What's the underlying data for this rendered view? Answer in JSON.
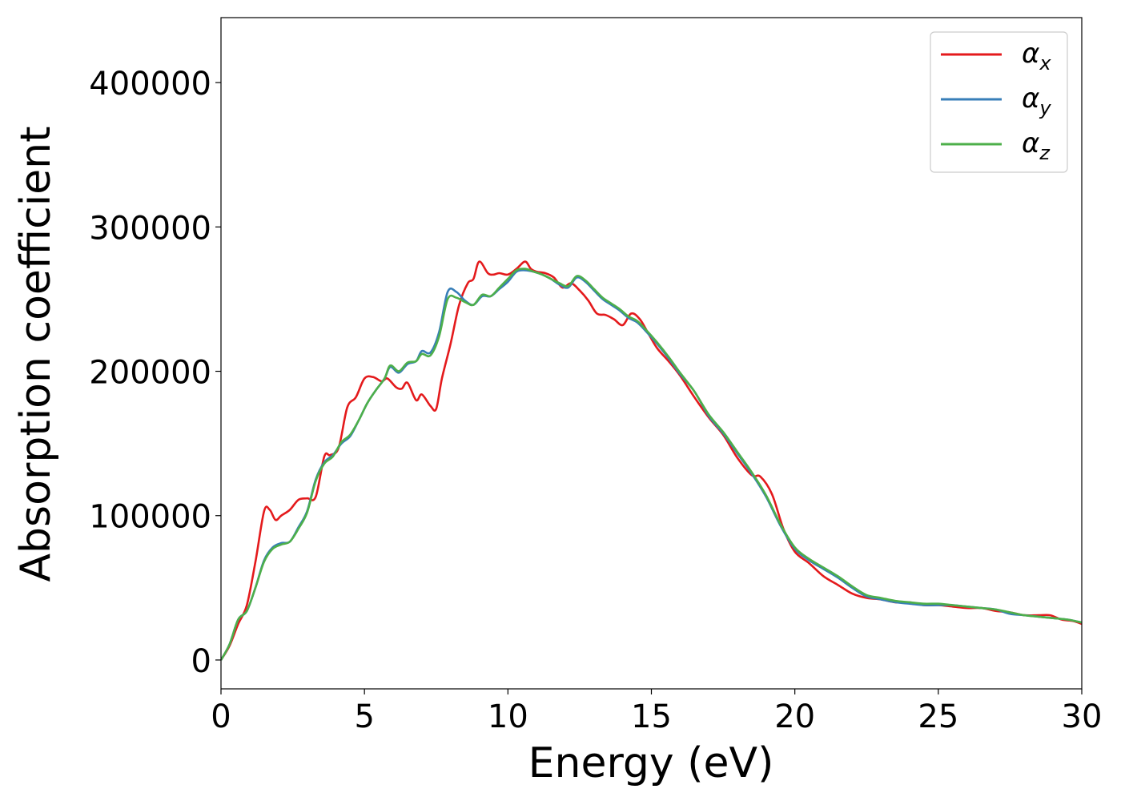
{
  "chart_data": {
    "type": "line",
    "xlabel": "Energy (eV)",
    "ylabel": "Absorption coefficient",
    "xlim": [
      0,
      30
    ],
    "ylim": [
      -20000,
      445000
    ],
    "x_ticks": [
      0,
      5,
      10,
      15,
      20,
      25,
      30
    ],
    "y_ticks": [
      0,
      100000,
      200000,
      300000,
      400000
    ],
    "x_tick_labels": [
      "0",
      "5",
      "10",
      "15",
      "20",
      "25",
      "30"
    ],
    "y_tick_labels": [
      "0",
      "100000",
      "200000",
      "300000",
      "400000"
    ],
    "grid": false,
    "legend_position": "top-right",
    "series": [
      {
        "name": "α",
        "subscript": "x",
        "color": "#e41a1c",
        "x": [
          0,
          0.3,
          0.6,
          0.9,
          1.2,
          1.5,
          1.7,
          1.9,
          2.1,
          2.4,
          2.7,
          3.0,
          3.3,
          3.6,
          3.8,
          4.1,
          4.4,
          4.7,
          5.0,
          5.3,
          5.6,
          5.8,
          6.1,
          6.3,
          6.5,
          6.8,
          7.0,
          7.3,
          7.5,
          7.7,
          8.0,
          8.3,
          8.6,
          8.8,
          9.0,
          9.3,
          9.5,
          9.7,
          10.0,
          10.3,
          10.6,
          10.8,
          11.0,
          11.3,
          11.6,
          11.9,
          12.2,
          12.5,
          12.8,
          13.1,
          13.4,
          13.7,
          14.0,
          14.3,
          14.6,
          14.9,
          15.2,
          15.6,
          16.0,
          16.5,
          17.0,
          17.5,
          18.0,
          18.5,
          18.8,
          19.2,
          19.6,
          20.0,
          20.5,
          21.0,
          21.5,
          22.0,
          22.5,
          23.0,
          23.5,
          24.0,
          24.5,
          25.0,
          25.5,
          26.0,
          26.5,
          27.0,
          27.5,
          28.0,
          28.5,
          28.9,
          29.3,
          29.7,
          30.0
        ],
        "values": [
          0,
          10000,
          25000,
          38000,
          68000,
          103000,
          104000,
          97000,
          100000,
          104000,
          111000,
          112000,
          113000,
          141000,
          142000,
          147000,
          175000,
          182000,
          195000,
          196000,
          193000,
          195000,
          189000,
          188000,
          192000,
          180000,
          184000,
          176000,
          174000,
          195000,
          219000,
          246000,
          261000,
          264000,
          276000,
          268000,
          267000,
          268000,
          267000,
          271000,
          276000,
          271000,
          269000,
          268000,
          265000,
          258000,
          261000,
          256000,
          249000,
          240000,
          239000,
          236000,
          232000,
          240000,
          236000,
          226000,
          216000,
          207000,
          197000,
          182000,
          168000,
          156000,
          140000,
          128000,
          127000,
          115000,
          91000,
          75000,
          67000,
          58000,
          52000,
          46000,
          43000,
          42000,
          40000,
          40000,
          38000,
          38000,
          37000,
          36000,
          36000,
          34000,
          33000,
          31000,
          31000,
          31000,
          28000,
          27000,
          25000
        ]
      },
      {
        "name": "α",
        "subscript": "y",
        "color": "#377eb8",
        "x": [
          0,
          0.3,
          0.6,
          0.9,
          1.2,
          1.5,
          1.8,
          2.1,
          2.4,
          2.7,
          3.0,
          3.3,
          3.6,
          3.9,
          4.2,
          4.5,
          4.8,
          5.1,
          5.4,
          5.7,
          5.9,
          6.2,
          6.5,
          6.8,
          7.0,
          7.3,
          7.6,
          7.9,
          8.2,
          8.5,
          8.8,
          9.1,
          9.4,
          9.7,
          10.0,
          10.3,
          10.6,
          10.9,
          11.2,
          11.5,
          11.8,
          12.1,
          12.4,
          12.7,
          13.0,
          13.3,
          13.6,
          13.9,
          14.2,
          14.5,
          14.8,
          15.2,
          15.6,
          16.0,
          16.5,
          17.0,
          17.5,
          18.0,
          18.5,
          19.0,
          19.5,
          20.0,
          20.5,
          21.0,
          21.5,
          22.0,
          22.5,
          23.0,
          23.5,
          24.0,
          24.5,
          25.0,
          25.5,
          26.0,
          26.5,
          27.0,
          27.5,
          28.0,
          28.5,
          29.0,
          29.5,
          30.0
        ],
        "values": [
          0,
          11000,
          28000,
          34000,
          50000,
          69000,
          78000,
          81000,
          82000,
          92000,
          103000,
          125000,
          137000,
          142000,
          150000,
          155000,
          166000,
          178000,
          187000,
          195000,
          203000,
          199000,
          205000,
          207000,
          214000,
          213000,
          227000,
          255000,
          255000,
          249000,
          246000,
          252000,
          252000,
          257000,
          262000,
          269000,
          270000,
          269000,
          267000,
          264000,
          260000,
          258000,
          265000,
          262000,
          256000,
          250000,
          246000,
          242000,
          237000,
          234000,
          228000,
          219000,
          209000,
          198000,
          186000,
          169000,
          157000,
          143000,
          129000,
          113000,
          93000,
          77000,
          69000,
          63000,
          57000,
          50000,
          44000,
          42000,
          40000,
          39000,
          38000,
          38000,
          38000,
          37000,
          36000,
          35000,
          32000,
          31000,
          30000,
          29000,
          28000,
          26000
        ]
      },
      {
        "name": "α",
        "subscript": "z",
        "color": "#4daf4a",
        "x": [
          0,
          0.3,
          0.6,
          0.9,
          1.2,
          1.5,
          1.8,
          2.1,
          2.4,
          2.7,
          3.0,
          3.3,
          3.6,
          3.9,
          4.2,
          4.5,
          4.8,
          5.1,
          5.4,
          5.7,
          5.9,
          6.2,
          6.5,
          6.8,
          7.0,
          7.3,
          7.6,
          7.9,
          8.2,
          8.5,
          8.8,
          9.1,
          9.4,
          9.7,
          10.0,
          10.3,
          10.6,
          10.9,
          11.2,
          11.5,
          11.8,
          12.1,
          12.4,
          12.7,
          13.0,
          13.3,
          13.6,
          13.9,
          14.2,
          14.5,
          14.8,
          15.2,
          15.6,
          16.0,
          16.5,
          17.0,
          17.5,
          18.0,
          18.5,
          19.0,
          19.5,
          20.0,
          20.5,
          21.0,
          21.5,
          22.0,
          22.5,
          23.0,
          23.5,
          24.0,
          24.5,
          25.0,
          25.5,
          26.0,
          26.5,
          27.0,
          27.5,
          28.0,
          28.5,
          29.0,
          29.5,
          30.0
        ],
        "values": [
          0,
          11000,
          28000,
          34000,
          50000,
          68000,
          77000,
          80000,
          82000,
          91000,
          102000,
          124000,
          136000,
          141000,
          151000,
          156000,
          166000,
          178000,
          187000,
          195000,
          204000,
          200000,
          206000,
          207000,
          212000,
          211000,
          224000,
          250000,
          251000,
          248000,
          246000,
          253000,
          252000,
          258000,
          264000,
          270000,
          271000,
          269000,
          267000,
          264000,
          261000,
          259000,
          266000,
          263000,
          257000,
          251000,
          247000,
          243000,
          238000,
          235000,
          229000,
          220000,
          210000,
          199000,
          186000,
          170000,
          158000,
          144000,
          130000,
          114000,
          94000,
          78000,
          70000,
          64000,
          58000,
          51000,
          45000,
          43000,
          41000,
          40000,
          39000,
          39000,
          38000,
          37000,
          36000,
          35000,
          33000,
          31000,
          30000,
          29000,
          28000,
          26000
        ]
      }
    ]
  }
}
